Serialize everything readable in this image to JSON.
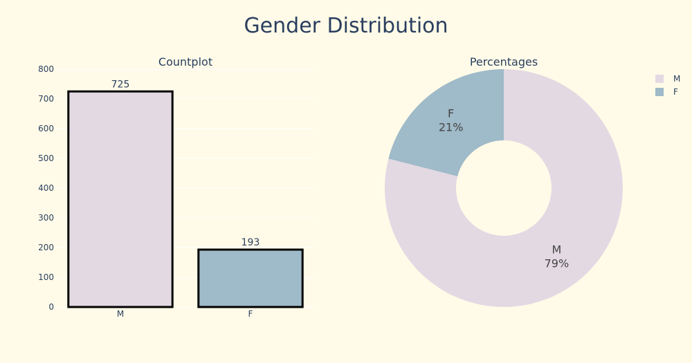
{
  "figure": {
    "title": "Gender Distribution",
    "background": "#fffbe8",
    "text_color": "#2a3f5f"
  },
  "colors": {
    "M": "#e3d9e3",
    "F": "#9fbac8"
  },
  "chart_data": [
    {
      "type": "bar",
      "title": "Countplot",
      "categories": [
        "M",
        "F"
      ],
      "values": [
        725,
        193
      ],
      "data_labels": [
        "725",
        "193"
      ],
      "ylim": [
        0,
        800
      ],
      "yticks": [
        0,
        100,
        200,
        300,
        400,
        500,
        600,
        700,
        800
      ],
      "xlabel": "",
      "ylabel": "",
      "grid": true
    },
    {
      "type": "pie",
      "title": "Percentages",
      "hole": true,
      "labels": [
        "M",
        "F"
      ],
      "values": [
        725,
        193
      ],
      "percent_labels": [
        "79%",
        "21%"
      ],
      "legend": {
        "placement": "top-right",
        "items": [
          "M",
          "F"
        ]
      }
    }
  ]
}
